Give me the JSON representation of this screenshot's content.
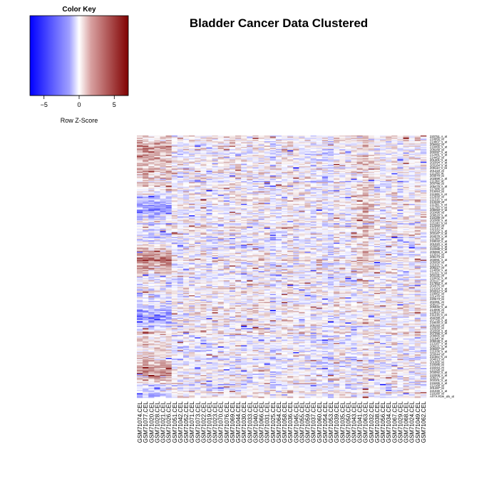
{
  "chart_data": {
    "type": "heatmap",
    "title": "Bladder Cancer Data Clustered",
    "color_key": {
      "title": "Color Key",
      "xlabel": "Row Z-Score",
      "ticks": [
        -5,
        0,
        5
      ],
      "range": [
        -7,
        7
      ],
      "colors": {
        "low": "#0000ff",
        "mid": "#ffffff",
        "high": "#800000"
      }
    },
    "columns": [
      "GSM71074.CEL",
      "GSM71077.CEL",
      "GSM71020.CEL",
      "GSM71028.CEL",
      "GSM71021.CEL",
      "GSM71026.CEL",
      "GSM71051.CEL",
      "GSM71042.CEL",
      "GSM71052.CEL",
      "GSM71071.CEL",
      "GSM71073.CEL",
      "GSM71022.CEL",
      "GSM71019.CEL",
      "GSM71023.CEL",
      "GSM71070.CEL",
      "GSM71076.CEL",
      "GSM71069.CEL",
      "GSM71044.CEL",
      "GSM71030.CEL",
      "GSM71033.CEL",
      "GSM71040.CEL",
      "GSM71066.CEL",
      "GSM71031.CEL",
      "GSM71025.CEL",
      "GSM71064.CEL",
      "GSM71058.CEL",
      "GSM71036.CEL",
      "GSM71045.CEL",
      "GSM71055.CEL",
      "GSM71059.CEL",
      "GSM71037.CEL",
      "GSM71060.CEL",
      "GSM71054.CEL",
      "GSM71053.CEL",
      "GSM71039.CEL",
      "GSM71035.CEL",
      "GSM71050.CEL",
      "GSM71043.CEL",
      "GSM71041.CEL",
      "GSM71063.CEL",
      "GSM71032.CEL",
      "GSM71038.CEL",
      "GSM71056.CEL",
      "GSM71034.CEL",
      "GSM71067.CEL",
      "GSM71029.CEL",
      "GSM71068.CEL",
      "GSM71024.CEL",
      "GSM71049.CEL",
      "GSM71062.CEL"
    ],
    "rows": [
      "220751_s_at",
      "219956_at",
      "214807_s_at",
      "209462_at",
      "219466_s_at",
      "208289_at",
      "200297_s_at",
      "212481_s_at",
      "214452_at",
      "201301_s_at",
      "202094_x_at",
      "203184_s_at",
      "208110_x_at",
      "201319_at",
      "211208_at",
      "204070_at",
      "202898_x_at",
      "211364_at",
      "204795_at",
      "205479_s_at",
      "217486_at",
      "213054_at",
      "211506_s_at",
      "212930_at",
      "211315_x_at",
      "213326_at",
      "211391_s_at",
      "211756_x_at",
      "208050_s_at",
      "202496_at",
      "209520_s_at",
      "218189_at",
      "202086_s_at",
      "221180_s_at",
      "212460_at",
      "211510_at",
      "221032_s_at",
      "203167_s_at",
      "204079_x_at",
      "211308_at",
      "218032_s_at",
      "201020_x_at",
      "203052_s_at",
      "222088_s_at",
      "205066_s_at",
      "213312_at",
      "209173_at",
      "203091_s_at",
      "205058_at",
      "221021_x_at",
      "208317_at",
      "214056_x_at",
      "211021_s_at",
      "204131_at",
      "219432_s_at",
      "203117_at",
      "217653_s_at",
      "202975_at",
      "214154_s_at",
      "203312_x_at",
      "218062_at",
      "221470_at",
      "220573_at",
      "202381_at",
      "209127_at",
      "205946_s_at",
      "214006_at",
      "219910_at",
      "211215_x_at",
      "203769_at",
      "207756_s_at",
      "218030_x_at",
      "205193_at",
      "220930_at",
      "202558_s_at",
      "207056_s_at",
      "209665_at",
      "211940_at",
      "206036_s_at",
      "213187_x_at",
      "208221_s_at",
      "209467_at",
      "221036_s_at",
      "203044_at",
      "211502_s_at",
      "204013_at",
      "201065_at",
      "219385_at",
      "215344_at",
      "210198_at",
      "203092_s_at",
      "222006_s_at",
      "208217_at",
      "203101_s_at",
      "219465_s_at",
      "212168_at",
      "201487_at",
      "221030_s_at",
      "218180_at",
      "AFFX-hum_alu_at"
    ],
    "legend_position": "top-left",
    "grid": false
  }
}
